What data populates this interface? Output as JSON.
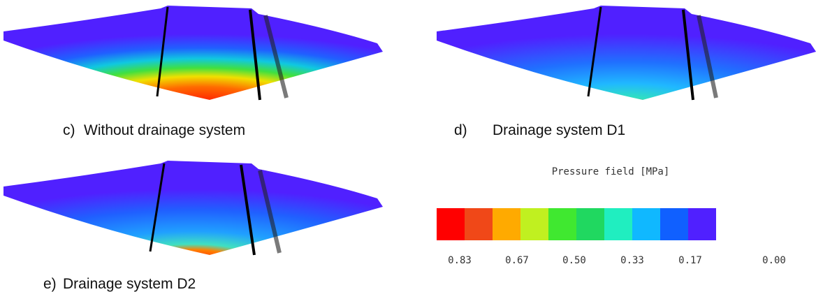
{
  "panels": [
    {
      "label": "c)",
      "caption": "Without drainage system"
    },
    {
      "label": "d)",
      "caption": "Drainage system D1"
    },
    {
      "label": "e)",
      "caption": "Drainage system D2"
    }
  ],
  "legend": {
    "title": "Pressure field [MPa]",
    "ticks": [
      "0.83",
      "0.67",
      "0.50",
      "0.33",
      "0.17",
      "0.00"
    ]
  }
}
